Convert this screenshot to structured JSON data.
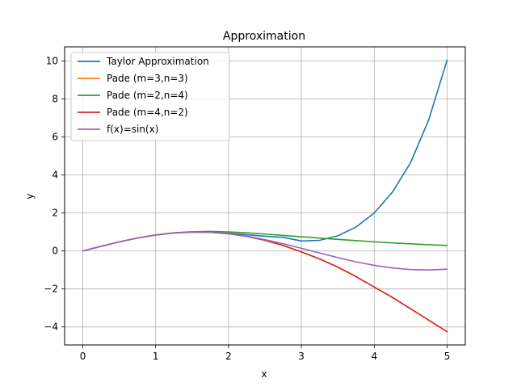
{
  "chart_data": {
    "type": "line",
    "title": "Approximation",
    "xlabel": "x",
    "ylabel": "y",
    "xlim": [
      -0.25,
      5.25
    ],
    "ylim": [
      -4.95,
      10.75
    ],
    "xticks": [
      0,
      1,
      2,
      3,
      4,
      5
    ],
    "yticks": [
      -4,
      -2,
      0,
      2,
      4,
      6,
      8,
      10
    ],
    "grid": true,
    "legend": "top-left",
    "series": [
      {
        "name": "Taylor Approximation",
        "color": "#1f77b4",
        "x": [
          0,
          0.25,
          0.5,
          0.75,
          1.0,
          1.25,
          1.5,
          1.75,
          2.0,
          2.25,
          2.5,
          2.75,
          3.0,
          3.25,
          3.5,
          3.75,
          4.0,
          4.25,
          4.5,
          4.75,
          5.0
        ],
        "y": [
          0,
          0.247,
          0.479,
          0.682,
          0.842,
          0.949,
          0.998,
          0.988,
          0.933,
          0.854,
          0.774,
          0.718,
          0.525,
          0.56,
          0.8,
          1.26,
          2.0,
          3.1,
          4.66,
          6.93,
          10.05
        ]
      },
      {
        "name": "Pade (m=3,n=3)",
        "color": "#ff7f0e",
        "x": [
          0,
          0.25,
          0.5,
          0.75,
          1.0,
          1.25,
          1.5,
          1.75,
          2.0,
          2.25,
          2.5,
          2.75,
          3.0,
          3.25,
          3.5,
          3.75,
          4.0,
          4.25,
          4.5,
          4.75,
          5.0
        ],
        "y": [
          0,
          0.247,
          0.479,
          0.682,
          0.841,
          0.947,
          0.995,
          0.983,
          0.906,
          0.77,
          0.56,
          0.29,
          -0.05,
          -0.42,
          -0.85,
          -1.35,
          -1.9,
          -2.45,
          -3.05,
          -3.65,
          -4.25
        ]
      },
      {
        "name": "Pade (m=2,n=4)",
        "color": "#2ca02c",
        "x": [
          0,
          0.25,
          0.5,
          0.75,
          1.0,
          1.25,
          1.5,
          1.75,
          2.0,
          2.25,
          2.5,
          2.75,
          3.0,
          3.25,
          3.5,
          3.75,
          4.0,
          4.25,
          4.5,
          4.75,
          5.0
        ],
        "y": [
          0,
          0.247,
          0.479,
          0.683,
          0.846,
          0.958,
          1.015,
          1.03,
          1.005,
          0.955,
          0.89,
          0.82,
          0.75,
          0.68,
          0.61,
          0.545,
          0.48,
          0.425,
          0.375,
          0.33,
          0.29
        ]
      },
      {
        "name": "Pade (m=4,n=2)",
        "color": "#d62728",
        "x": [
          0,
          0.25,
          0.5,
          0.75,
          1.0,
          1.25,
          1.5,
          1.75,
          2.0,
          2.25,
          2.5,
          2.75,
          3.0,
          3.25,
          3.5,
          3.75,
          4.0,
          4.25,
          4.5,
          4.75,
          5.0
        ],
        "y": [
          0,
          0.247,
          0.479,
          0.682,
          0.841,
          0.947,
          0.995,
          0.983,
          0.906,
          0.77,
          0.56,
          0.29,
          -0.05,
          -0.42,
          -0.85,
          -1.35,
          -1.9,
          -2.45,
          -3.05,
          -3.65,
          -4.25
        ]
      },
      {
        "name": "f(x)=sin(x)",
        "color": "#9467bd",
        "x": [
          0,
          0.25,
          0.5,
          0.75,
          1.0,
          1.25,
          1.5,
          1.75,
          2.0,
          2.25,
          2.5,
          2.75,
          3.0,
          3.25,
          3.5,
          3.75,
          4.0,
          4.25,
          4.5,
          4.75,
          5.0
        ],
        "y": [
          0,
          0.247,
          0.479,
          0.682,
          0.841,
          0.949,
          0.997,
          0.984,
          0.909,
          0.778,
          0.598,
          0.382,
          0.141,
          -0.108,
          -0.351,
          -0.572,
          -0.757,
          -0.895,
          -0.978,
          -0.999,
          -0.959
        ]
      }
    ]
  }
}
